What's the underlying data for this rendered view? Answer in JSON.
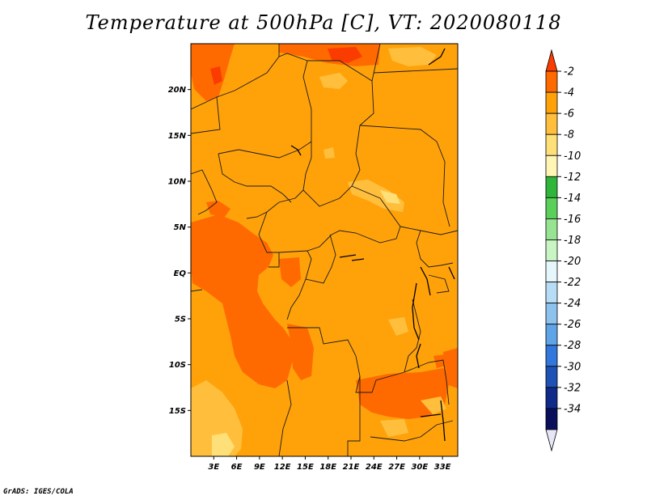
{
  "title": "Temperature at 500hPa [C], VT: 2020080118",
  "footer": "GrADS: IGES/COLA",
  "map": {
    "lon_range": [
      0,
      35
    ],
    "lat_range": [
      -20,
      25
    ],
    "x_ticks": [
      "3E",
      "6E",
      "9E",
      "12E",
      "15E",
      "18E",
      "21E",
      "24E",
      "27E",
      "30E",
      "33E"
    ],
    "y_ticks": [
      "20N",
      "15N",
      "10N",
      "5N",
      "EQ",
      "5S",
      "10S",
      "15S"
    ],
    "background_color": "#ffa20a"
  },
  "colorbar": {
    "labels": [
      "-2",
      "-4",
      "-6",
      "-8",
      "-10",
      "-12",
      "-14",
      "-16",
      "-18",
      "-20",
      "-22",
      "-24",
      "-26",
      "-28",
      "-30",
      "-32",
      "-34"
    ],
    "colors": [
      "#fa3c00",
      "#ff6a00",
      "#ffa20a",
      "#ffbf3c",
      "#ffdf78",
      "#fff5b5",
      "#2fb53a",
      "#5ad05a",
      "#96e391",
      "#c8f5c3",
      "#e6f7fb",
      "#b7dcf5",
      "#8ec2ee",
      "#5ea4e6",
      "#3277db",
      "#1f52b5",
      "#102a8a",
      "#0a0f5c",
      "#e6e6f7"
    ]
  }
}
